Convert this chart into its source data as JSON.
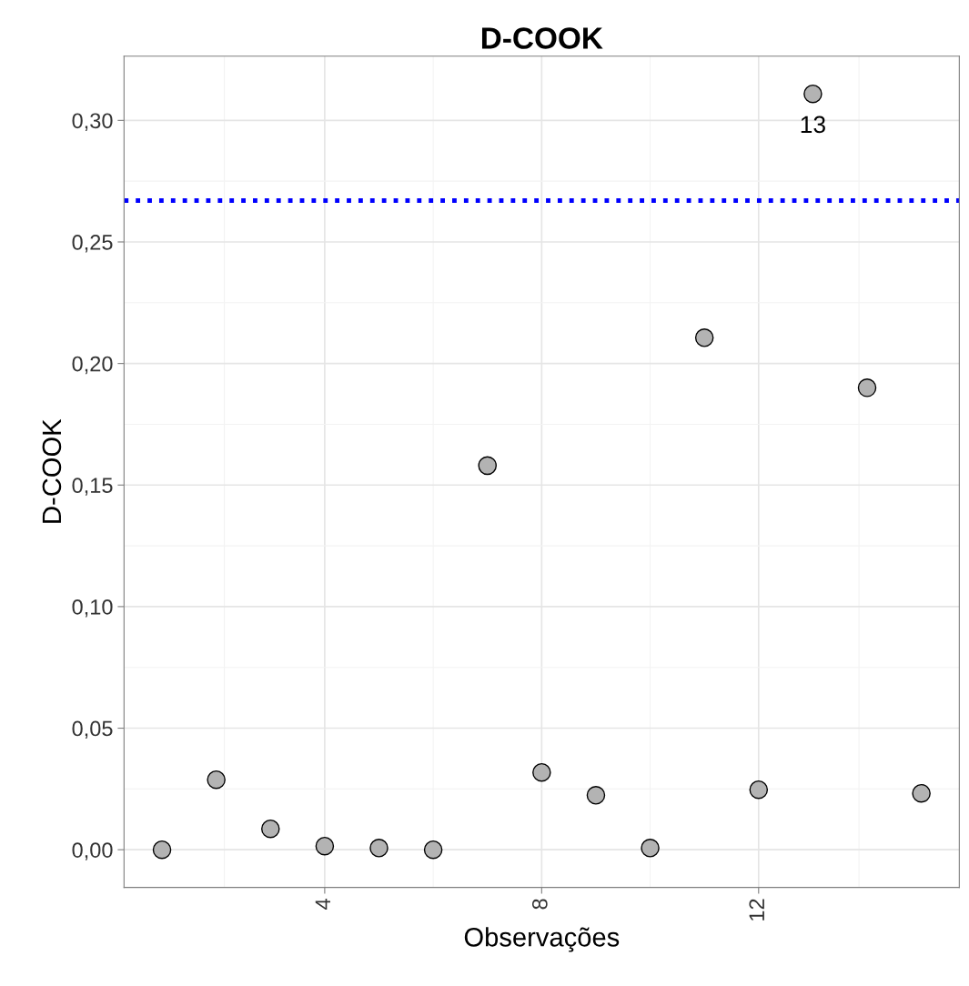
{
  "chart_data": {
    "type": "scatter",
    "title": "D-COOK",
    "xlabel": "Observações",
    "ylabel": "D-COOK",
    "x": [
      1,
      2,
      3,
      4,
      5,
      6,
      7,
      8,
      9,
      10,
      11,
      12,
      13,
      14,
      15
    ],
    "series": [
      {
        "color": "#b3b3b3",
        "values": [
          0.0,
          0.0288,
          0.0086,
          0.0015,
          0.0007,
          0.0,
          0.158,
          0.0318,
          0.0224,
          0.0007,
          0.2106,
          0.0247,
          0.3109,
          0.19,
          0.0232
        ]
      }
    ],
    "marker": "circle",
    "grid": true,
    "xlim": [
      0.3,
      15.7
    ],
    "xticks": [
      4,
      8,
      12
    ],
    "ylim": [
      -0.0155,
      0.3264
    ],
    "yticks": [
      {
        "value": 0.0,
        "label": "0,00"
      },
      {
        "value": 0.05,
        "label": "0,05"
      },
      {
        "value": 0.1,
        "label": "0,10"
      },
      {
        "value": 0.15,
        "label": "0,15"
      },
      {
        "value": 0.2,
        "label": "0,20"
      },
      {
        "value": 0.25,
        "label": "0,25"
      },
      {
        "value": 0.3,
        "label": "0,30"
      }
    ],
    "ref_lines": [
      {
        "axis": "y",
        "value": 0.267,
        "color": "#0000ff",
        "line_style": "dotted"
      }
    ],
    "annotations": [
      {
        "text": "13",
        "x": 13,
        "y": 0.3109
      }
    ]
  }
}
